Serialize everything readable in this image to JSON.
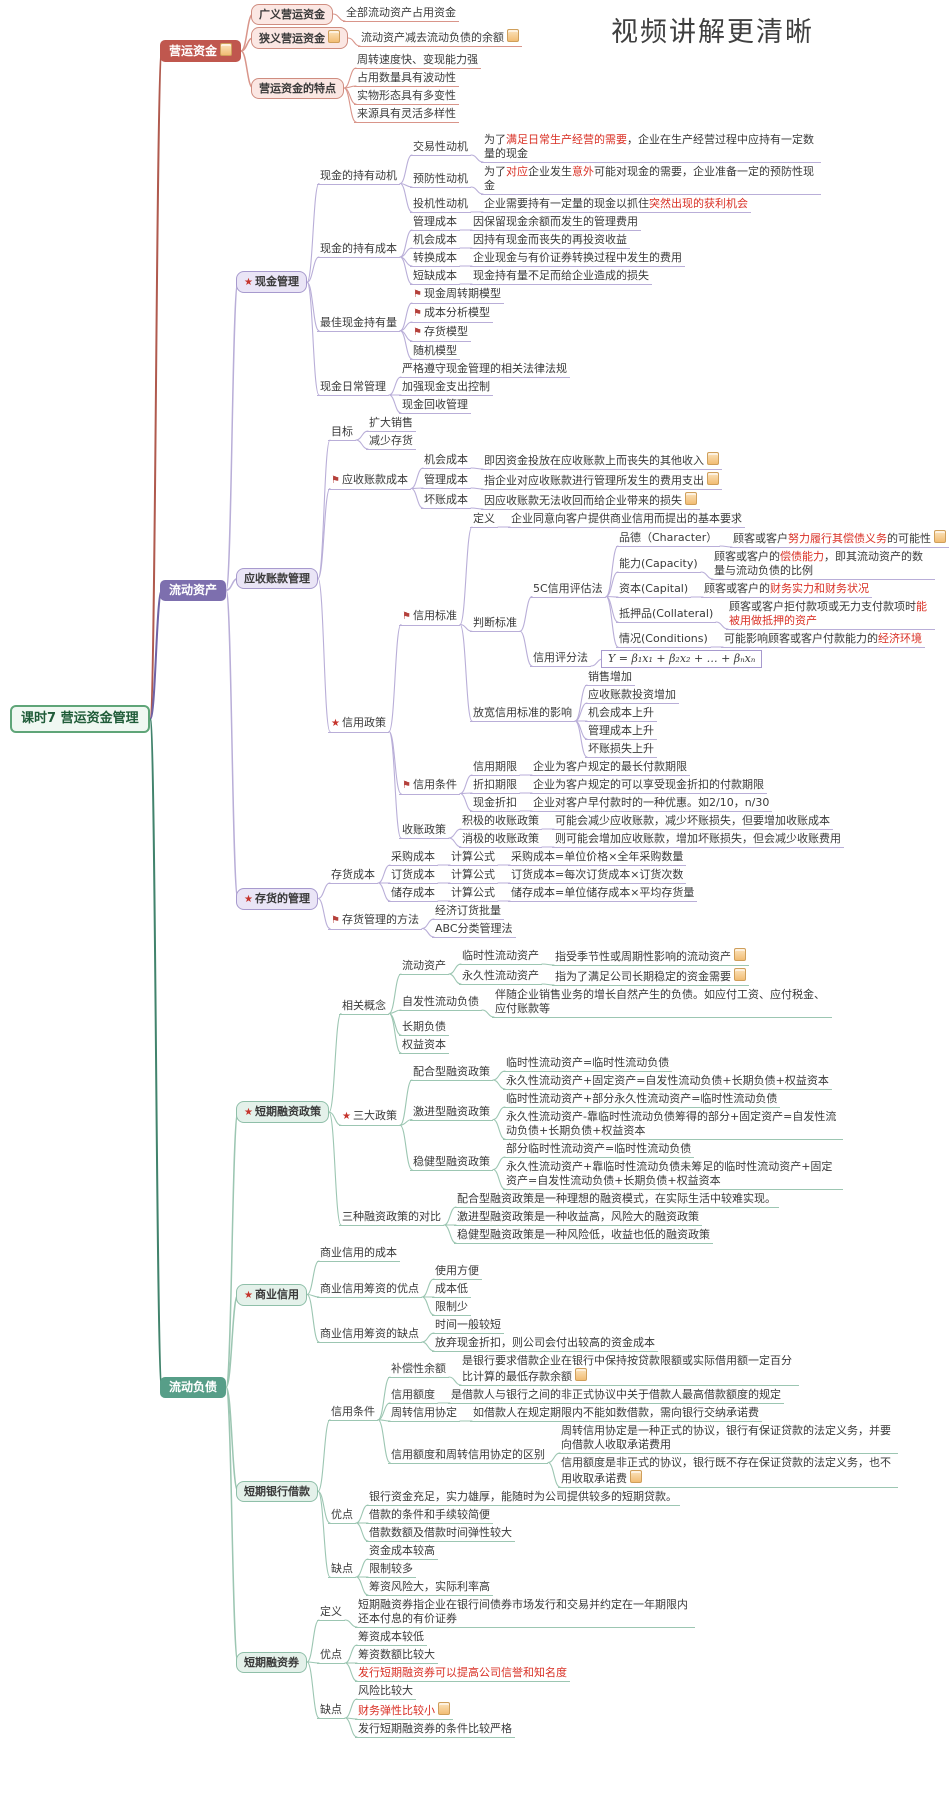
{
  "watermark": "视频讲解更清晰",
  "palette": {
    "background": "#ffffff",
    "highlight_red": "#d93025",
    "root_border": "#5fa578",
    "branches": [
      {
        "label": "营运资金",
        "fill": "#c0574e",
        "trunk": "#b05a4e",
        "line": "#d9958a"
      },
      {
        "label": "流动资产",
        "fill": "#7d6fae",
        "trunk": "#6f63a6",
        "line": "#b9aed8"
      },
      {
        "label": "流动负债",
        "fill": "#579e88",
        "trunk": "#41836c",
        "line": "#9cc6b2"
      }
    ]
  },
  "tree": {
    "t": "课时7 营运资金管理",
    "s": "root",
    "c": [
      {
        "t": "营运资金",
        "s": "b-red",
        "note": true,
        "c": [
          {
            "t": "广义营运资金",
            "s": "box-pink",
            "c": [
              {
                "t": "全部流动资产占用资金"
              }
            ]
          },
          {
            "t": "狭义营运资金",
            "s": "box-pink",
            "note": true,
            "c": [
              {
                "t": "流动资产减去流动负债的余额",
                "note": true
              }
            ]
          },
          {
            "t": "营运资金的特点",
            "s": "box-pink",
            "c": [
              {
                "t": "周转速度快、变现能力强"
              },
              {
                "t": "占用数量具有波动性"
              },
              {
                "t": "实物形态具有多变性"
              },
              {
                "t": "来源具有灵活多样性"
              }
            ]
          }
        ]
      },
      {
        "t": "流动资产",
        "s": "b-purple",
        "c": [
          {
            "t": "现金管理",
            "s": "box-purple",
            "star": true,
            "c": [
              {
                "t": "现金的持有动机",
                "c": [
                  {
                    "t": "交易性动机",
                    "c": [
                      {
                        "t": "为了⟦满足日常生产经营的需要⟧，企业在生产经营过程中应持有一定数量的现金"
                      }
                    ]
                  },
                  {
                    "t": "预防性动机",
                    "c": [
                      {
                        "t": "为了⟦对应⟧企业发生⟦意外⟧可能对现金的需要，企业准备一定的预防性现金"
                      }
                    ]
                  },
                  {
                    "t": "投机性动机",
                    "c": [
                      {
                        "t": "企业需要持有一定量的现金以抓住⟦突然出现的获利机会⟧"
                      }
                    ]
                  }
                ]
              },
              {
                "t": "现金的持有成本",
                "c": [
                  {
                    "t": "管理成本",
                    "c": [
                      {
                        "t": "因保留现金余额而发生的管理费用"
                      }
                    ]
                  },
                  {
                    "t": "机会成本",
                    "c": [
                      {
                        "t": "因持有现金而丧失的再投资收益"
                      }
                    ]
                  },
                  {
                    "t": "转换成本",
                    "c": [
                      {
                        "t": "企业现金与有价证券转换过程中发生的费用"
                      }
                    ]
                  },
                  {
                    "t": "短缺成本",
                    "c": [
                      {
                        "t": "现金持有量不足而给企业造成的损失"
                      }
                    ]
                  }
                ]
              },
              {
                "t": "最佳现金持有量",
                "c": [
                  {
                    "t": "现金周转期模型",
                    "flag": true
                  },
                  {
                    "t": "成本分析模型",
                    "flag": true
                  },
                  {
                    "t": "存货模型",
                    "flag": true
                  },
                  {
                    "t": "随机模型"
                  }
                ]
              },
              {
                "t": "现金日常管理",
                "c": [
                  {
                    "t": "严格遵守现金管理的相关法律法规"
                  },
                  {
                    "t": "加强现金支出控制"
                  },
                  {
                    "t": "现金回收管理"
                  }
                ]
              }
            ]
          },
          {
            "t": "应收账款管理",
            "s": "box-purple",
            "c": [
              {
                "t": "目标",
                "c": [
                  {
                    "t": "扩大销售"
                  },
                  {
                    "t": "减少存货"
                  }
                ]
              },
              {
                "t": "应收账款成本",
                "flag": true,
                "c": [
                  {
                    "t": "机会成本",
                    "c": [
                      {
                        "t": "即因资金投放在应收账款上而丧失的其他收入",
                        "note": true
                      }
                    ]
                  },
                  {
                    "t": "管理成本",
                    "c": [
                      {
                        "t": "指企业对应收账款进行管理所发生的费用支出",
                        "note": true
                      }
                    ]
                  },
                  {
                    "t": "坏账成本",
                    "c": [
                      {
                        "t": "因应收账款无法收回而给企业带来的损失",
                        "note": true
                      }
                    ]
                  }
                ]
              },
              {
                "t": "信用政策",
                "star": true,
                "c": [
                  {
                    "t": "信用标准",
                    "flag": true,
                    "c": [
                      {
                        "t": "定义",
                        "c": [
                          {
                            "t": "企业同意向客户提供商业信用而提出的基本要求"
                          }
                        ]
                      },
                      {
                        "t": "判断标准",
                        "c": [
                          {
                            "t": "5C信用评估法",
                            "c": [
                              {
                                "t": "品德（Character）",
                                "c": [
                                  {
                                    "t": "顾客或客户⟦努力履行其偿债义务⟧的可能性",
                                    "note": true
                                  }
                                ]
                              },
                              {
                                "t": "能力(Capacity)",
                                "c": [
                                  {
                                    "t": "顾客或客户的⟦偿债能力⟧，即其流动资产的数量与流动负债的比例"
                                  }
                                ]
                              },
                              {
                                "t": "资本(Capital)",
                                "c": [
                                  {
                                    "t": "顾客或客户的⟦财务实力和财务状况⟧"
                                  }
                                ]
                              },
                              {
                                "t": "抵押品(Collateral)",
                                "c": [
                                  {
                                    "t": "顾客或客户拒付款项或无力支付款项时⟦能被用做抵押的资产⟧"
                                  }
                                ]
                              },
                              {
                                "t": "情况(Conditions)",
                                "c": [
                                  {
                                    "t": "可能影响顾客或客户付款能力的⟦经济环境⟧"
                                  }
                                ]
                              }
                            ]
                          },
                          {
                            "t": "信用评分法",
                            "c": [
                              {
                                "t": "Y = β₁x₁ + β₂x₂ + … + βₙxₙ",
                                "s": "formula"
                              }
                            ]
                          }
                        ]
                      },
                      {
                        "t": "放宽信用标准的影响",
                        "c": [
                          {
                            "t": "销售增加"
                          },
                          {
                            "t": "应收账款投资增加"
                          },
                          {
                            "t": "机会成本上升"
                          },
                          {
                            "t": "管理成本上升"
                          },
                          {
                            "t": "坏账损失上升"
                          }
                        ]
                      }
                    ]
                  },
                  {
                    "t": "信用条件",
                    "flag": true,
                    "c": [
                      {
                        "t": "信用期限",
                        "c": [
                          {
                            "t": "企业为客户规定的最长付款期限"
                          }
                        ]
                      },
                      {
                        "t": "折扣期限",
                        "c": [
                          {
                            "t": "企业为客户规定的可以享受现金折扣的付款期限"
                          }
                        ]
                      },
                      {
                        "t": "现金折扣",
                        "c": [
                          {
                            "t": "企业对客户早付款时的一种优惠。如2/10，n/30"
                          }
                        ]
                      }
                    ]
                  },
                  {
                    "t": "收账政策",
                    "c": [
                      {
                        "t": "积极的收账政策",
                        "c": [
                          {
                            "t": "可能会减少应收账款，减少坏账损失，但要增加收账成本"
                          }
                        ]
                      },
                      {
                        "t": "消极的收账政策",
                        "c": [
                          {
                            "t": "则可能会增加应收账款，增加坏账损失，但会减少收账费用"
                          }
                        ]
                      }
                    ]
                  }
                ]
              }
            ]
          },
          {
            "t": "存货的管理",
            "s": "box-purple",
            "star": true,
            "c": [
              {
                "t": "存货成本",
                "c": [
                  {
                    "t": "采购成本",
                    "c": [
                      {
                        "t": "计算公式",
                        "c": [
                          {
                            "t": "采购成本=单位价格×全年采购数量"
                          }
                        ]
                      }
                    ]
                  },
                  {
                    "t": "订货成本",
                    "c": [
                      {
                        "t": "计算公式",
                        "c": [
                          {
                            "t": "订货成本=每次订货成本×订货次数"
                          }
                        ]
                      }
                    ]
                  },
                  {
                    "t": "储存成本",
                    "c": [
                      {
                        "t": "计算公式",
                        "c": [
                          {
                            "t": "储存成本=单位储存成本×平均存货量"
                          }
                        ]
                      }
                    ]
                  }
                ]
              },
              {
                "t": "存货管理的方法",
                "flag": true,
                "c": [
                  {
                    "t": "经济订货批量"
                  },
                  {
                    "t": "ABC分类管理法"
                  }
                ]
              }
            ]
          }
        ]
      },
      {
        "t": "流动负债",
        "s": "b-green",
        "c": [
          {
            "t": "短期融资政策",
            "s": "box-green",
            "star": true,
            "c": [
              {
                "t": "相关概念",
                "c": [
                  {
                    "t": "流动资产",
                    "c": [
                      {
                        "t": "临时性流动资产",
                        "c": [
                          {
                            "t": "指受季节性或周期性影响的流动资产",
                            "note": true
                          }
                        ]
                      },
                      {
                        "t": "永久性流动资产",
                        "c": [
                          {
                            "t": "指为了满足公司长期稳定的资金需要",
                            "note": true
                          }
                        ]
                      }
                    ]
                  },
                  {
                    "t": "自发性流动负债",
                    "c": [
                      {
                        "t": "伴随企业销售业务的增长自然产生的负债。如应付工资、应付税金、应付账款等"
                      }
                    ]
                  },
                  {
                    "t": "长期负债"
                  },
                  {
                    "t": "权益资本"
                  }
                ]
              },
              {
                "t": "三大政策",
                "star": true,
                "c": [
                  {
                    "t": "配合型融资政策",
                    "c": [
                      {
                        "t": "临时性流动资产=临时性流动负债"
                      },
                      {
                        "t": "永久性流动资产+固定资产=自发性流动负债+长期负债+权益资本"
                      }
                    ]
                  },
                  {
                    "t": "激进型融资政策",
                    "c": [
                      {
                        "t": "临时性流动资产+部分永久性流动资产=临时性流动负债"
                      },
                      {
                        "t": "永久性流动资产-靠临时性流动负债筹得的部分+固定资产=自发性流动负债+长期负债+权益资本"
                      }
                    ]
                  },
                  {
                    "t": "稳健型融资政策",
                    "c": [
                      {
                        "t": "部分临时性流动资产=临时性流动负债"
                      },
                      {
                        "t": "永久性流动资产+靠临时性流动负债未筹足的临时性流动资产+固定资产=自发性流动负债+长期负债+权益资本"
                      }
                    ]
                  }
                ]
              },
              {
                "t": "三种融资政策的对比",
                "c": [
                  {
                    "t": "配合型融资政策是一种理想的融资模式，在实际生活中较难实现。"
                  },
                  {
                    "t": "激进型融资政策是一种收益高，风险大的融资政策"
                  },
                  {
                    "t": "稳健型融资政策是一种风险低，收益也低的融资政策"
                  }
                ]
              }
            ]
          },
          {
            "t": "商业信用",
            "s": "box-green",
            "star": true,
            "c": [
              {
                "t": "商业信用的成本"
              },
              {
                "t": "商业信用筹资的优点",
                "c": [
                  {
                    "t": "使用方便"
                  },
                  {
                    "t": "成本低"
                  },
                  {
                    "t": "限制少"
                  }
                ]
              },
              {
                "t": "商业信用筹资的缺点",
                "c": [
                  {
                    "t": "时间一般较短"
                  },
                  {
                    "t": "放弃现金折扣，则公司会付出较高的资金成本"
                  }
                ]
              }
            ]
          },
          {
            "t": "短期银行借款",
            "s": "box-green",
            "c": [
              {
                "t": "信用条件",
                "c": [
                  {
                    "t": "补偿性余额",
                    "c": [
                      {
                        "t": "是银行要求借款企业在银行中保持按贷款限额或实际借用额一定百分比计算的最低存款余额",
                        "note": true
                      }
                    ]
                  },
                  {
                    "t": "信用额度",
                    "c": [
                      {
                        "t": "是借款人与银行之间的非正式协议中关于借款人最高借款额度的规定"
                      }
                    ]
                  },
                  {
                    "t": "周转信用协定",
                    "c": [
                      {
                        "t": "如借款人在规定期限内不能如数借款，需向银行交纳承诺费"
                      }
                    ]
                  },
                  {
                    "t": "信用额度和周转信用协定的区别",
                    "c": [
                      {
                        "t": "周转信用协定是一种正式的协议，银行有保证贷款的法定义务，并要向借款人收取承诺费用"
                      },
                      {
                        "t": "信用额度是非正式的协议，银行既不存在保证贷款的法定义务，也不用收取承诺费",
                        "note": true
                      }
                    ]
                  }
                ]
              },
              {
                "t": "优点",
                "c": [
                  {
                    "t": "银行资金充足，实力雄厚，能随时为公司提供较多的短期贷款。"
                  },
                  {
                    "t": "借款的条件和手续较简便"
                  },
                  {
                    "t": "借款数额及借款时间弹性较大"
                  }
                ]
              },
              {
                "t": "缺点",
                "c": [
                  {
                    "t": "资金成本较高"
                  },
                  {
                    "t": "限制较多"
                  },
                  {
                    "t": "筹资风险大，实际利率高"
                  }
                ]
              }
            ]
          },
          {
            "t": "短期融资券",
            "s": "box-green",
            "c": [
              {
                "t": "定义",
                "c": [
                  {
                    "t": "短期融资券指企业在银行间债券市场发行和交易并约定在一年期限内还本付息的有价证券"
                  }
                ]
              },
              {
                "t": "优点",
                "c": [
                  {
                    "t": "筹资成本较低"
                  },
                  {
                    "t": "筹资数额比较大"
                  },
                  {
                    "t": "⟦发行短期融资券可以提高公司信誉和知名度⟧"
                  }
                ]
              },
              {
                "t": "缺点",
                "c": [
                  {
                    "t": "风险比较大"
                  },
                  {
                    "t": "⟦财务弹性比较小⟧",
                    "note": true
                  },
                  {
                    "t": "发行短期融资券的条件比较严格"
                  }
                ]
              }
            ]
          }
        ]
      }
    ]
  }
}
